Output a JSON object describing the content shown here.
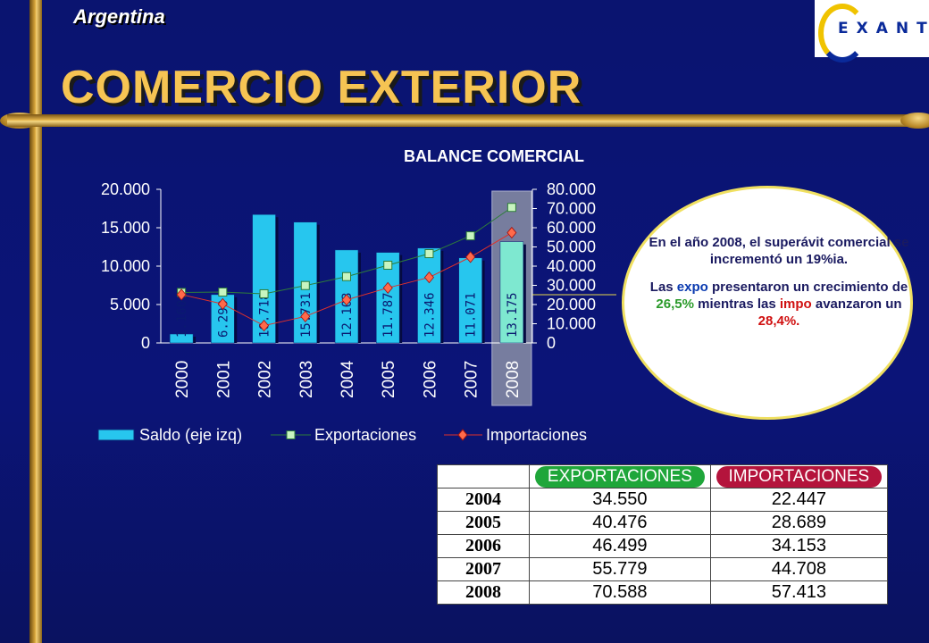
{
  "header": {
    "country": "Argentina",
    "title": "COMERCIO EXTERIOR",
    "logo_text": "EXANTE"
  },
  "chart_data": {
    "type": "bar",
    "title": "BALANCE COMERCIAL",
    "categories": [
      "2000",
      "2001",
      "2002",
      "2003",
      "2004",
      "2005",
      "2006",
      "2007",
      "2008"
    ],
    "left_axis": {
      "ylim": [
        0,
        20000
      ],
      "ticks": [
        "20.000",
        "15.000",
        "10.000",
        "5.000",
        "0"
      ]
    },
    "right_axis": {
      "ylim": [
        0,
        80000
      ],
      "ticks": [
        "80.000",
        "70.000",
        "60.000",
        "50.000",
        "40.000",
        "30.000",
        "20.000",
        "10.000",
        "0"
      ]
    },
    "series": [
      {
        "name": "Saldo (eje izq)",
        "type": "bar",
        "axis": "left",
        "values": [
          1160,
          6290,
          16718,
          15731,
          12103,
          11787,
          12346,
          11071,
          13175
        ],
        "labels": [
          "1.160",
          "6.290",
          "16.718",
          "15.731",
          "12.103",
          "11.787",
          "12.346",
          "11.071",
          "13.175"
        ]
      },
      {
        "name": "Exportaciones",
        "type": "line",
        "axis": "right",
        "values": [
          26300,
          26500,
          25600,
          29900,
          34550,
          40476,
          46499,
          55779,
          70588
        ]
      },
      {
        "name": "Importaciones",
        "type": "line",
        "axis": "right",
        "values": [
          25200,
          20300,
          9000,
          13800,
          22447,
          28689,
          34153,
          44708,
          57413
        ]
      }
    ],
    "legend_position": "bottom",
    "highlight_category": "2008"
  },
  "note": {
    "p1": "En el año 2008, el superávit comercial se incrementó un 19%ia.",
    "p2_a": "Las ",
    "p2_b": "expo",
    "p2_c": " presentaron un crecimiento de ",
    "p2_d": "26,5%",
    "p2_e": " mientras las ",
    "p2_f": "impo",
    "p2_g": " avanzaron un ",
    "p2_h": "28,4%."
  },
  "table": {
    "headers": [
      "EXPORTACIONES",
      "IMPORTACIONES"
    ],
    "rows": [
      {
        "year": "2004",
        "exp": "34.550",
        "imp": "22.447"
      },
      {
        "year": "2005",
        "exp": "40.476",
        "imp": "28.689"
      },
      {
        "year": "2006",
        "exp": "46.499",
        "imp": "34.153"
      },
      {
        "year": "2007",
        "exp": "55.779",
        "imp": "44.708"
      },
      {
        "year": "2008",
        "exp": "70.588",
        "imp": "57.413"
      }
    ]
  },
  "colors": {
    "bar": "#27c6ee",
    "bar_highlight": "#7ee8d0",
    "exports_line": "#2e7d3a",
    "imports_line": "#e0302a",
    "title": "#f6c453"
  }
}
